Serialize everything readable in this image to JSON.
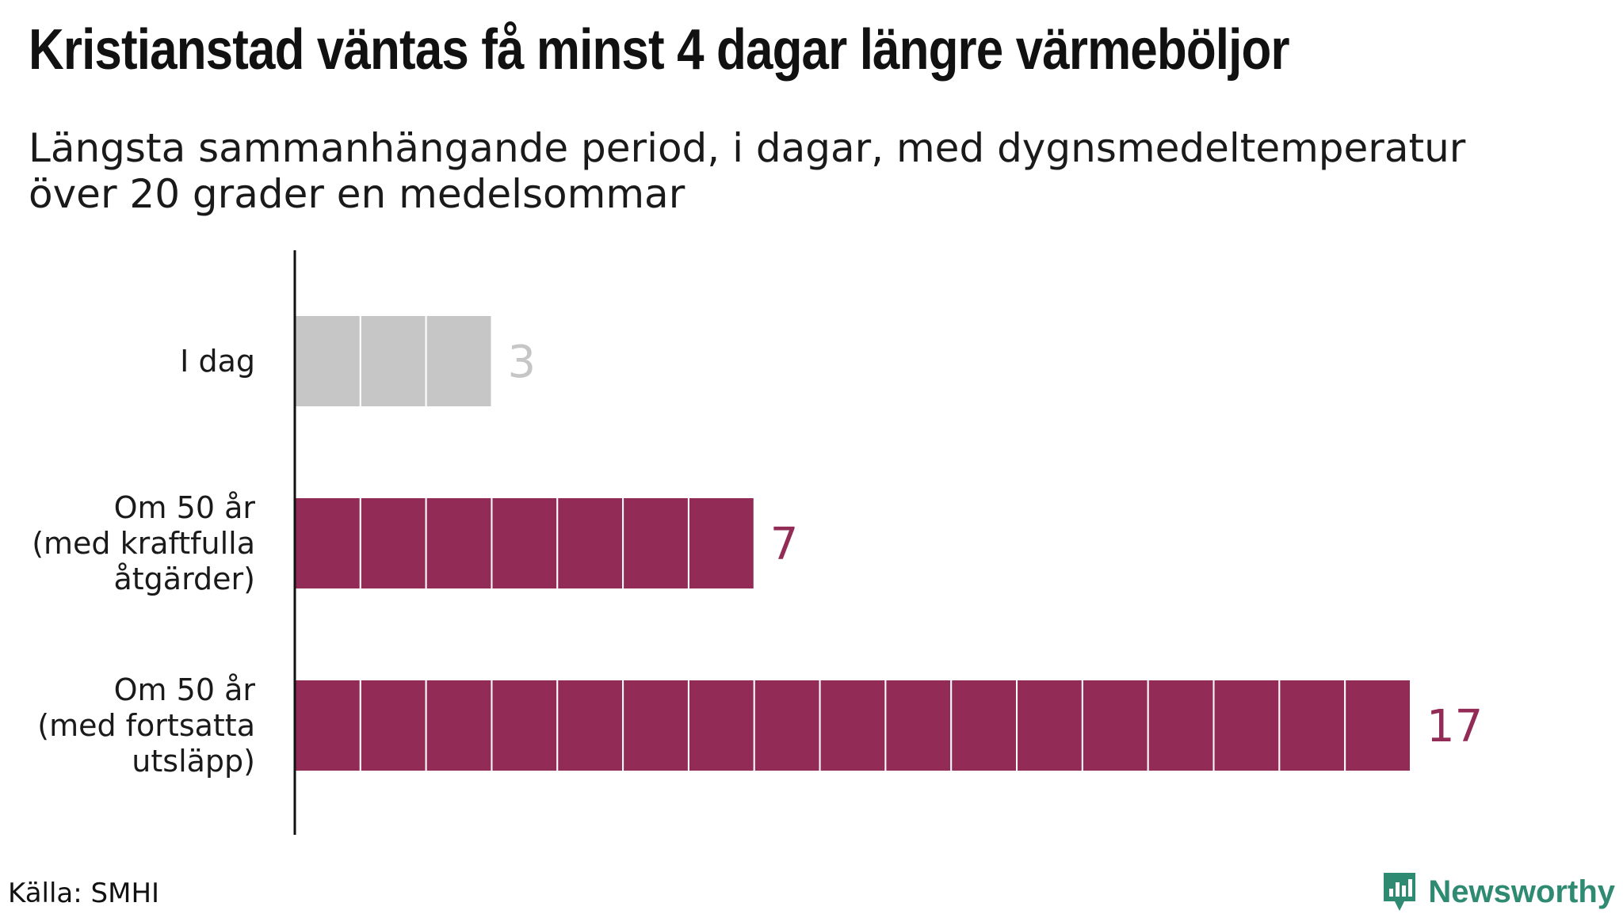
{
  "chart_data": {
    "type": "bar",
    "orientation": "horizontal",
    "title": "Kristianstad väntas få minst 4 dagar längre värmeböljor",
    "subtitle": "Längsta sammanhängande period, i dagar, med dygnsmedeltemperatur över 20 grader en medelsommar",
    "categories": [
      [
        "I dag"
      ],
      [
        "Om 50 år",
        "(med kraftfulla",
        "åtgärder)"
      ],
      [
        "Om 50 år",
        "(med fortsatta",
        "utsläpp)"
      ]
    ],
    "values": [
      3,
      7,
      17
    ],
    "value_labels": [
      "3",
      "7",
      "17"
    ],
    "colors": [
      "#c6c6c6",
      "#922b55",
      "#922b55"
    ],
    "label_colors": [
      "#c6c6c6",
      "#922b55",
      "#922b55"
    ],
    "xlim": [
      0,
      17
    ],
    "grid": false,
    "legend": "none",
    "source": "Källa: SMHI"
  },
  "brand": {
    "name": "Newsworthy",
    "logo_icon": "newsworthy-logo-icon",
    "color": "#2f8a72"
  }
}
